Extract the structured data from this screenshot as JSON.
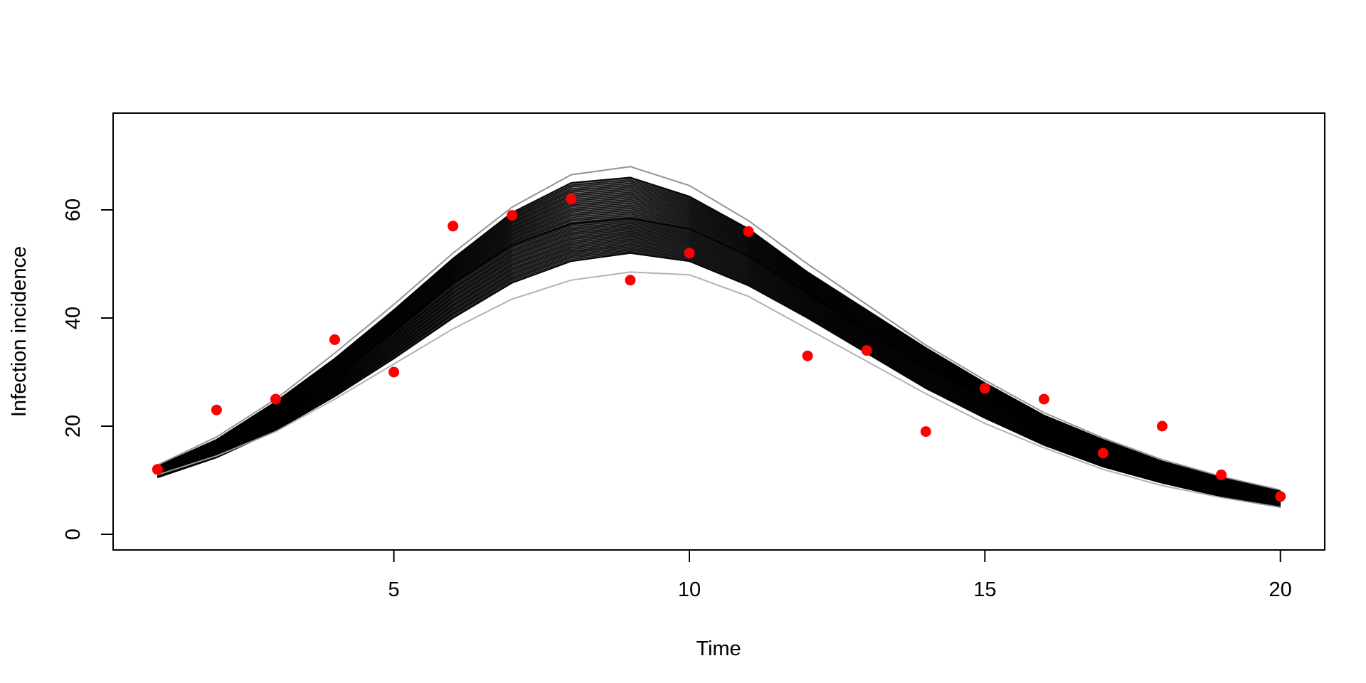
{
  "chart_data": {
    "type": "line",
    "xlabel": "Time",
    "ylabel": "Infection incidence",
    "xlim": [
      0.25,
      20.75
    ],
    "ylim": [
      -2.9,
      77.9
    ],
    "x_ticks": [
      5,
      10,
      15,
      20
    ],
    "y_ticks": [
      0,
      20,
      40,
      60
    ],
    "grid": false,
    "legend": "none",
    "series": [
      {
        "role": "simulation ensemble (upper envelope)",
        "color": "#000000",
        "x": [
          1,
          2,
          3,
          4,
          5,
          6,
          7,
          8,
          9,
          10,
          11,
          12,
          13,
          14,
          15,
          16,
          17,
          18,
          19,
          20
        ],
        "values": [
          12.6,
          17.5,
          24.5,
          32.5,
          41.5,
          51.0,
          59.5,
          65.0,
          66.0,
          62.5,
          56.5,
          48.5,
          41.5,
          34.5,
          28.0,
          22.0,
          17.5,
          13.5,
          10.5,
          8.0
        ]
      },
      {
        "role": "simulation ensemble (central)",
        "color": "#000000",
        "x": [
          1,
          2,
          3,
          4,
          5,
          6,
          7,
          8,
          9,
          10,
          11,
          12,
          13,
          14,
          15,
          16,
          17,
          18,
          19,
          20
        ],
        "values": [
          11.5,
          15.8,
          21.8,
          29.0,
          37.5,
          46.5,
          53.5,
          57.5,
          58.5,
          56.5,
          51.5,
          44.5,
          37.5,
          31.0,
          25.0,
          19.5,
          15.0,
          11.5,
          8.5,
          6.5
        ]
      },
      {
        "role": "simulation ensemble (lower envelope)",
        "color": "#000000",
        "x": [
          1,
          2,
          3,
          4,
          5,
          6,
          7,
          8,
          9,
          10,
          11,
          12,
          13,
          14,
          15,
          16,
          17,
          18,
          19,
          20
        ],
        "values": [
          10.5,
          14.2,
          19.2,
          25.5,
          32.5,
          40.0,
          46.5,
          50.5,
          52.0,
          50.5,
          46.0,
          40.0,
          33.5,
          27.0,
          21.5,
          16.5,
          12.5,
          9.5,
          7.0,
          5.0
        ]
      },
      {
        "role": "simulation outliers (low, grey)",
        "color": "#aaaaaa",
        "x": [
          1,
          2,
          3,
          4,
          5,
          6,
          7,
          8,
          9,
          10,
          11,
          12,
          13,
          14,
          15,
          16,
          17,
          18,
          19,
          20
        ],
        "values": [
          11.0,
          14.5,
          19.0,
          25.0,
          31.5,
          38.0,
          43.5,
          47.0,
          48.5,
          48.0,
          44.0,
          38.0,
          32.0,
          26.0,
          20.5,
          16.0,
          12.0,
          9.0,
          6.8,
          5.0
        ]
      },
      {
        "role": "simulation outliers (high, grey)",
        "color": "#888888",
        "x": [
          1,
          2,
          3,
          4,
          5,
          6,
          7,
          8,
          9,
          10,
          11,
          12,
          13,
          14,
          15,
          16,
          17,
          18,
          19,
          20
        ],
        "values": [
          12.8,
          18.0,
          25.0,
          33.5,
          42.5,
          52.0,
          60.5,
          66.5,
          68.0,
          64.5,
          58.0,
          50.0,
          42.5,
          35.0,
          28.5,
          22.5,
          17.8,
          13.8,
          10.7,
          8.2
        ]
      }
    ],
    "observed": {
      "color": "#ff0000",
      "x": [
        1,
        2,
        3,
        4,
        5,
        6,
        7,
        8,
        9,
        10,
        11,
        12,
        13,
        14,
        15,
        16,
        17,
        18,
        19,
        20
      ],
      "y": [
        12,
        23,
        25,
        36,
        30,
        57,
        59,
        62,
        47,
        52,
        56,
        33,
        34,
        19,
        27,
        25,
        15,
        20,
        11,
        7
      ]
    }
  }
}
